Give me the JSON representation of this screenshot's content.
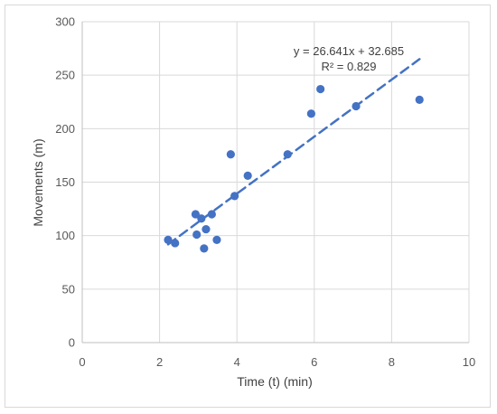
{
  "chart_data": {
    "type": "scatter",
    "title": "",
    "xlabel": "Time (t) (min)",
    "ylabel": "Movements (m)",
    "xlim": [
      0,
      10
    ],
    "ylim": [
      0,
      300
    ],
    "x_ticks": [
      "0",
      "2",
      "4",
      "6",
      "8",
      "10"
    ],
    "y_ticks": [
      "0",
      "50",
      "100",
      "150",
      "200",
      "250",
      "300"
    ],
    "grid": "vertical and horizontal major gridlines",
    "legend": "none",
    "series": [
      {
        "color": "#4472c4",
        "points": [
          {
            "x": 2.22,
            "y": 96
          },
          {
            "x": 2.4,
            "y": 93
          },
          {
            "x": 2.93,
            "y": 120
          },
          {
            "x": 2.96,
            "y": 101
          },
          {
            "x": 3.08,
            "y": 116
          },
          {
            "x": 3.15,
            "y": 88
          },
          {
            "x": 3.2,
            "y": 106
          },
          {
            "x": 3.35,
            "y": 120
          },
          {
            "x": 3.48,
            "y": 96
          },
          {
            "x": 3.84,
            "y": 176
          },
          {
            "x": 3.94,
            "y": 137
          },
          {
            "x": 4.28,
            "y": 156
          },
          {
            "x": 5.31,
            "y": 176
          },
          {
            "x": 5.92,
            "y": 214
          },
          {
            "x": 6.16,
            "y": 237
          },
          {
            "x": 7.08,
            "y": 221
          },
          {
            "x": 8.72,
            "y": 227
          }
        ]
      }
    ],
    "trendline": {
      "type": "linear",
      "slope": 26.641,
      "intercept": 32.685,
      "x_range": [
        2.22,
        8.72
      ],
      "color": "#4472c4",
      "style": "dashed",
      "equation_label": "y = 26.641x + 32.685",
      "r2_label": "R² = 0.829"
    }
  }
}
